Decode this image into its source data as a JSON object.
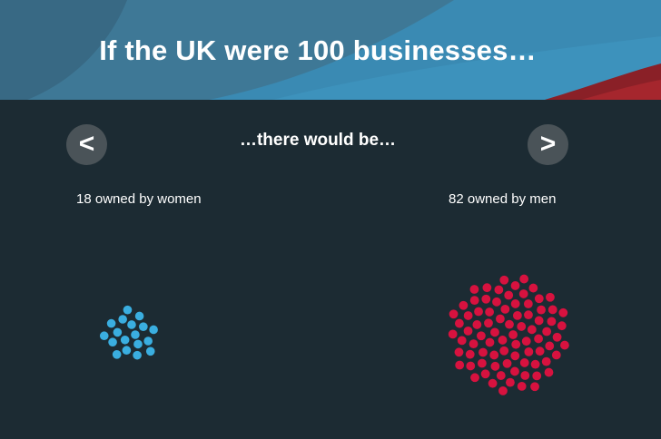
{
  "title": "If the UK were 100 businesses…",
  "subtitle": "…there would be…",
  "nav": {
    "prev_label": "<",
    "next_label": ">"
  },
  "groups": [
    {
      "label": "18 owned by women",
      "count": 18,
      "color": "#3aaee0"
    },
    {
      "label": "82 owned by men",
      "count": 82,
      "color": "#d7123f"
    }
  ],
  "colors": {
    "background": "#1c2b33",
    "header_blue": "#3b8db5",
    "header_dark": "#33667e",
    "accent_red": "#a0222a",
    "nav_button": "#4a5358"
  }
}
